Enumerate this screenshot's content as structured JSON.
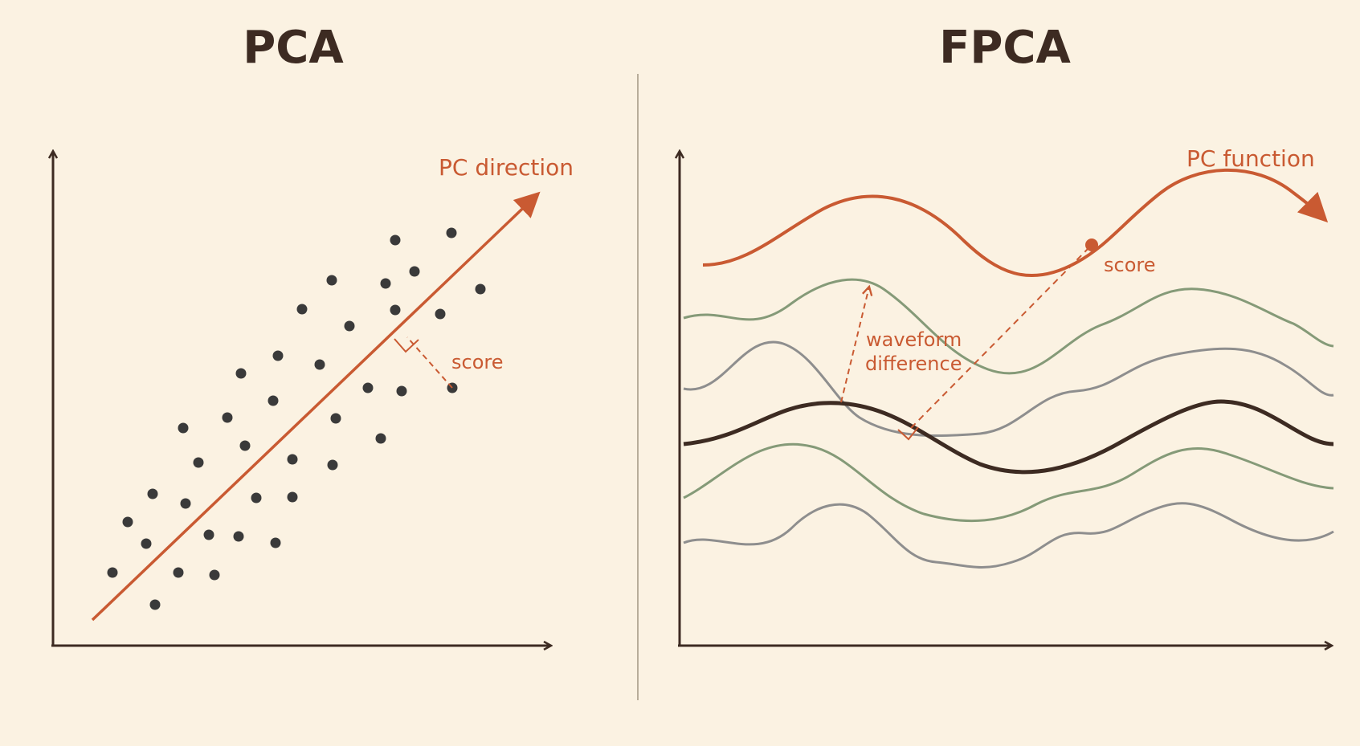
{
  "left_panel": {
    "title": "PCA",
    "direction_label": "PC direction",
    "score_label": "score"
  },
  "right_panel": {
    "title": "FPCA",
    "function_label": "PC function",
    "score_label": "score",
    "difference_label_line1": "waveform",
    "difference_label_line2": "difference"
  },
  "colors": {
    "background": "#fbf2e2",
    "axis": "#3d2b22",
    "accent": "#c95a32",
    "dot": "#3a3a3a",
    "green_curve": "#859a78",
    "gray_curve": "#8e8e8e",
    "mean_curve": "#3d2b22",
    "divider": "#b8ad9a"
  }
}
